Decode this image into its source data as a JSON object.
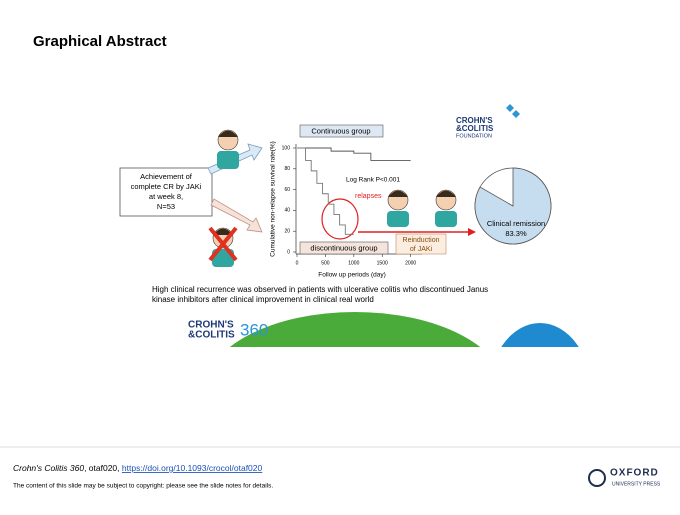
{
  "header": {
    "title": "Graphical Abstract"
  },
  "abstract": {
    "left_box": [
      "Achievement of",
      "complete CR by JAKi",
      "at week 8,",
      "N=53"
    ],
    "foundation_logo": [
      "CROHN'S",
      "&COLITIS",
      "FOUNDATION"
    ],
    "km_chart": {
      "type": "line",
      "ylabel": "Cumulative non-relapse survival rate(%)",
      "xlabel": "Follow up periods (day)",
      "xlim": [
        0,
        2200
      ],
      "xticks": [
        0,
        500,
        1000,
        1500,
        2000
      ],
      "ylim": [
        0,
        100
      ],
      "yticks": [
        0,
        20,
        40,
        60,
        80,
        100
      ],
      "series": [
        {
          "name": "Continuous group",
          "color": "#555555",
          "x": [
            0,
            600,
            600,
            1000,
            1000,
            1300,
            1300,
            2000
          ],
          "values": [
            100,
            100,
            97,
            97,
            95,
            95,
            88,
            88
          ]
        },
        {
          "name": "discontinuous group",
          "color": "#777777",
          "x": [
            0,
            150,
            150,
            250,
            250,
            350,
            350,
            450,
            450,
            550,
            550,
            650,
            650,
            750,
            750,
            850,
            850,
            1000
          ],
          "values": [
            100,
            100,
            88,
            88,
            78,
            78,
            66,
            66,
            56,
            56,
            46,
            46,
            36,
            36,
            26,
            26,
            17,
            17
          ]
        }
      ],
      "annotation": "Log Rank P<0.001",
      "relapses": "relapses",
      "reinduction": [
        "Reinduction",
        "of JAKi"
      ]
    },
    "pie": {
      "type": "pie",
      "labels": [
        "Clinical remission"
      ],
      "values": [
        83.3
      ],
      "value_labels": [
        "83.3%"
      ],
      "color": "#c6ddf0"
    },
    "caption": [
      "High clinical recurrence was observed in patients with ulcerative colitis who discontinued Janus",
      "kinase inhibitors after clinical improvement in clinical real world"
    ],
    "journal_logo": [
      "CROHN'S",
      "&COLITIS",
      "360"
    ]
  },
  "footer": {
    "journal": "Crohn's Colitis 360",
    "id": ", otaf020, ",
    "doi": "https://doi.org/10.1093/crocol/otaf020",
    "notice": "The content of this slide may be subject to copyright: please see the slide notes for details.",
    "publisher": [
      "OXFORD",
      "UNIVERSITY PRESS"
    ]
  }
}
